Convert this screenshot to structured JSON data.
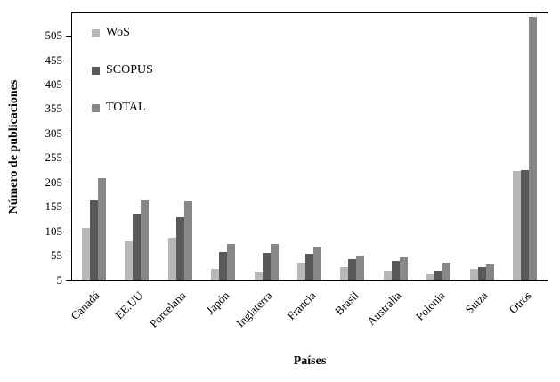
{
  "chart_data": {
    "type": "bar",
    "title": "",
    "xlabel": "Países",
    "ylabel": "Número de publicaciones",
    "categories": [
      "Canadá",
      "EE.UU",
      "Porcelana",
      "Japón",
      "Inglaterra",
      "Francia",
      "Brasil",
      "Australia",
      "Polonia",
      "Suiza",
      "Otros"
    ],
    "series": [
      {
        "name": "WoS",
        "color": "#b8b8b8",
        "values": [
          113,
          85,
          93,
          28,
          23,
          42,
          32,
          25,
          18,
          29,
          230
        ]
      },
      {
        "name": "SCOPUS",
        "color": "#595959",
        "values": [
          170,
          142,
          135,
          63,
          62,
          60,
          48,
          45,
          25,
          32,
          232
        ]
      },
      {
        "name": "TOTAL",
        "color": "#878787",
        "values": [
          215,
          170,
          168,
          80,
          79,
          75,
          57,
          53,
          42,
          38,
          545
        ]
      }
    ],
    "yticks": [
      5,
      55,
      105,
      155,
      205,
      255,
      305,
      355,
      405,
      455,
      505
    ],
    "ymin": 5,
    "ymax_top": 550,
    "grid": false,
    "legend_position": "top-left"
  }
}
